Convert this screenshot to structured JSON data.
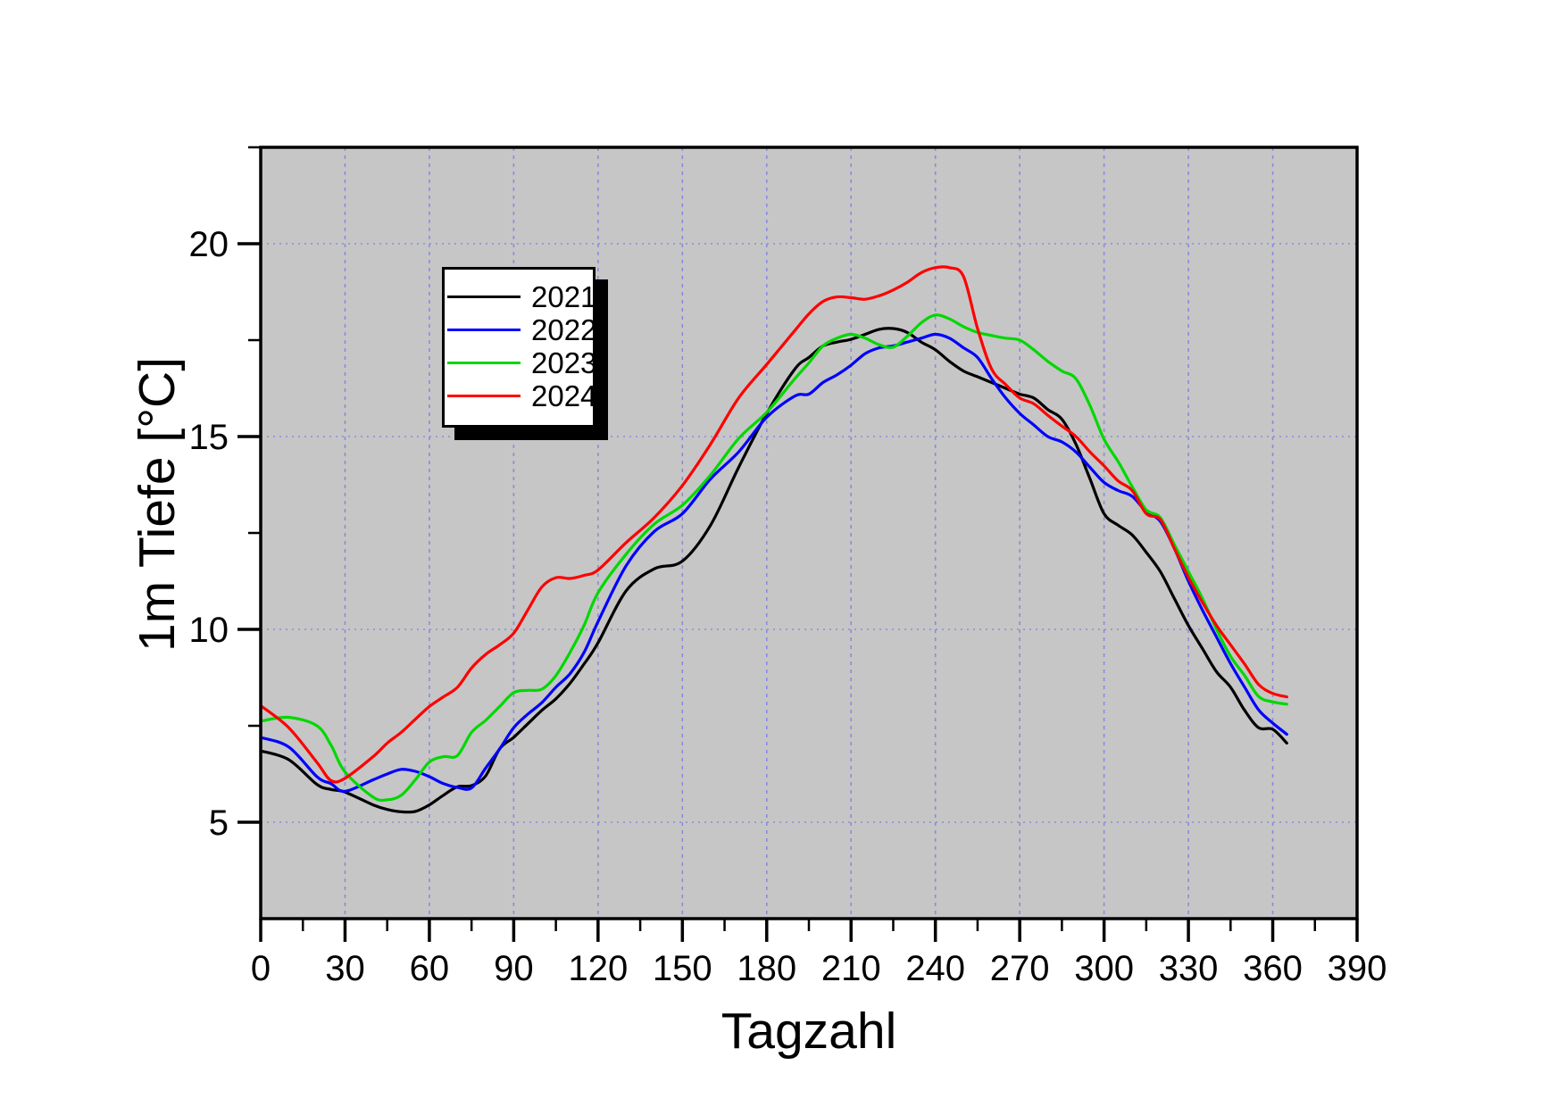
{
  "chart_data": {
    "type": "line",
    "title": "",
    "xlabel": "Tagzahl",
    "ylabel": "1m Tiefe [°C]",
    "xlim": [
      0,
      390
    ],
    "ylim": [
      2.5,
      22.5
    ],
    "xticks": [
      0,
      30,
      60,
      90,
      120,
      150,
      180,
      210,
      240,
      270,
      300,
      330,
      360,
      390
    ],
    "yticks": [
      5,
      10,
      15,
      20
    ],
    "grid": "on",
    "legend_position": "upper-left",
    "plot_bg": "#c6c6c6",
    "grid_color": "#8b8bdc",
    "frame_color": "#000000",
    "x": [
      0,
      10,
      20,
      25,
      30,
      40,
      45,
      50,
      55,
      60,
      65,
      70,
      75,
      80,
      85,
      90,
      95,
      100,
      105,
      110,
      115,
      120,
      130,
      140,
      150,
      160,
      170,
      180,
      190,
      195,
      200,
      205,
      210,
      215,
      220,
      225,
      230,
      235,
      240,
      245,
      250,
      255,
      260,
      265,
      270,
      275,
      280,
      285,
      290,
      295,
      300,
      305,
      310,
      315,
      320,
      325,
      330,
      335,
      340,
      345,
      350,
      355,
      360,
      365
    ],
    "series": [
      {
        "name": "2021",
        "color": "#000000",
        "values": [
          6.85,
          6.62,
          5.98,
          5.85,
          5.78,
          5.45,
          5.33,
          5.27,
          5.28,
          5.45,
          5.7,
          5.92,
          5.95,
          6.2,
          6.9,
          7.2,
          7.55,
          7.9,
          8.2,
          8.6,
          9.1,
          9.65,
          11.0,
          11.57,
          11.77,
          12.7,
          14.2,
          15.6,
          16.75,
          17.05,
          17.35,
          17.45,
          17.52,
          17.65,
          17.78,
          17.8,
          17.7,
          17.45,
          17.25,
          16.95,
          16.7,
          16.55,
          16.4,
          16.25,
          16.1,
          16.0,
          15.7,
          15.45,
          14.8,
          13.9,
          13.0,
          12.7,
          12.45,
          12.0,
          11.5,
          10.8,
          10.1,
          9.5,
          8.9,
          8.5,
          7.9,
          7.45,
          7.41,
          7.05
        ]
      },
      {
        "name": "2022",
        "color": "#0000ff",
        "values": [
          7.2,
          6.95,
          6.18,
          6.0,
          5.8,
          6.1,
          6.25,
          6.37,
          6.32,
          6.18,
          6.0,
          5.9,
          5.89,
          6.4,
          6.9,
          7.45,
          7.8,
          8.1,
          8.5,
          8.85,
          9.4,
          10.2,
          11.65,
          12.54,
          13.0,
          13.9,
          14.6,
          15.5,
          16.05,
          16.1,
          16.4,
          16.6,
          16.85,
          17.15,
          17.3,
          17.35,
          17.45,
          17.55,
          17.65,
          17.55,
          17.3,
          17.05,
          16.5,
          16.0,
          15.6,
          15.3,
          15.0,
          14.86,
          14.6,
          14.2,
          13.81,
          13.6,
          13.45,
          13.05,
          12.8,
          12.1,
          11.25,
          10.5,
          9.8,
          9.11,
          8.5,
          7.91,
          7.57,
          7.28
        ]
      },
      {
        "name": "2023",
        "color": "#00d800",
        "values": [
          7.62,
          7.72,
          7.5,
          7.0,
          6.3,
          5.65,
          5.58,
          5.7,
          6.1,
          6.56,
          6.7,
          6.73,
          7.33,
          7.64,
          8.0,
          8.36,
          8.42,
          8.45,
          8.8,
          9.4,
          10.1,
          10.95,
          11.95,
          12.73,
          13.22,
          14.0,
          14.95,
          15.63,
          16.5,
          16.91,
          17.35,
          17.55,
          17.65,
          17.55,
          17.38,
          17.32,
          17.6,
          17.95,
          18.15,
          18.05,
          17.85,
          17.7,
          17.62,
          17.55,
          17.5,
          17.25,
          16.95,
          16.7,
          16.5,
          15.8,
          14.93,
          14.35,
          13.7,
          13.1,
          12.9,
          12.2,
          11.5,
          10.8,
          10.0,
          9.3,
          8.8,
          8.26,
          8.12,
          8.06
        ]
      },
      {
        "name": "2024",
        "color": "#ff0000",
        "values": [
          8.02,
          7.45,
          6.55,
          6.08,
          6.14,
          6.7,
          7.05,
          7.33,
          7.67,
          8.0,
          8.25,
          8.5,
          9.0,
          9.35,
          9.6,
          9.9,
          10.5,
          11.1,
          11.34,
          11.32,
          11.4,
          11.54,
          12.25,
          12.9,
          13.73,
          14.8,
          16.0,
          16.87,
          17.75,
          18.18,
          18.5,
          18.62,
          18.6,
          18.56,
          18.65,
          18.8,
          19.0,
          19.25,
          19.38,
          19.38,
          19.15,
          17.8,
          16.75,
          16.35,
          16.0,
          15.85,
          15.55,
          15.27,
          15.0,
          14.6,
          14.24,
          13.85,
          13.6,
          13.0,
          12.85,
          12.1,
          11.35,
          10.7,
          10.1,
          9.6,
          9.1,
          8.57,
          8.34,
          8.25
        ]
      }
    ]
  }
}
